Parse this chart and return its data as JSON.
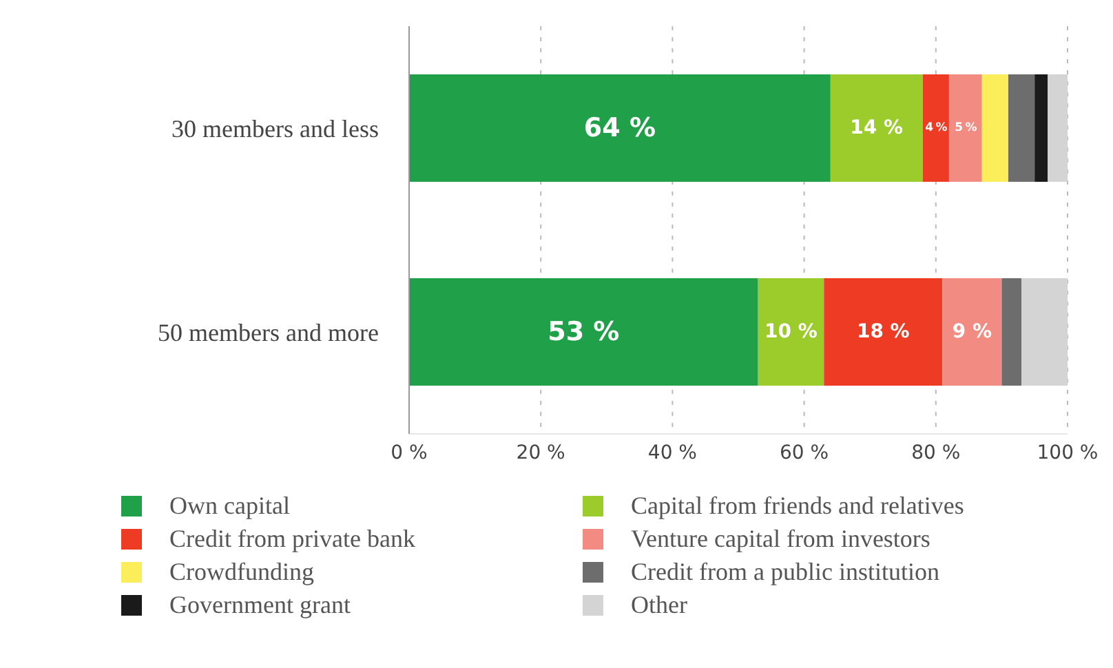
{
  "chart_data": {
    "type": "bar",
    "orientation": "horizontal",
    "stacked": true,
    "categories": [
      "30 members and less",
      "50 members and more"
    ],
    "series": [
      {
        "name": "Own capital",
        "color": "#21a04a",
        "values": [
          64,
          53
        ],
        "value_labels": [
          "64 %",
          "53 %"
        ]
      },
      {
        "name": "Capital from friends and relatives",
        "color": "#9ccb2c",
        "values": [
          14,
          10
        ],
        "value_labels": [
          "14 %",
          "10 %"
        ]
      },
      {
        "name": "Credit from private bank",
        "color": "#ee3b24",
        "values": [
          4,
          18
        ],
        "value_labels": [
          "4 %",
          "18 %"
        ]
      },
      {
        "name": "Venture capital from investors",
        "color": "#f28b82",
        "values": [
          5,
          9
        ],
        "value_labels": [
          "5 %",
          "9 %"
        ]
      },
      {
        "name": "Crowdfunding",
        "color": "#fcee5a",
        "values": [
          4,
          null
        ]
      },
      {
        "name": "Credit from a public institution",
        "color": "#6d6d6d",
        "values": [
          4,
          3
        ]
      },
      {
        "name": "Government grant",
        "color": "#1a1a1a",
        "values": [
          2,
          null
        ]
      },
      {
        "name": "Other",
        "color": "#d4d4d4",
        "values": [
          3,
          7
        ]
      }
    ],
    "xlim": [
      0,
      100
    ],
    "xticks": [
      {
        "value": 0,
        "label": "0 %"
      },
      {
        "value": 20,
        "label": "20 %"
      },
      {
        "value": 40,
        "label": "40 %"
      },
      {
        "value": 60,
        "label": "60 %"
      },
      {
        "value": 80,
        "label": "80 %"
      },
      {
        "value": 100,
        "label": "100 %"
      }
    ],
    "grid": "x",
    "legend": "bottom"
  }
}
